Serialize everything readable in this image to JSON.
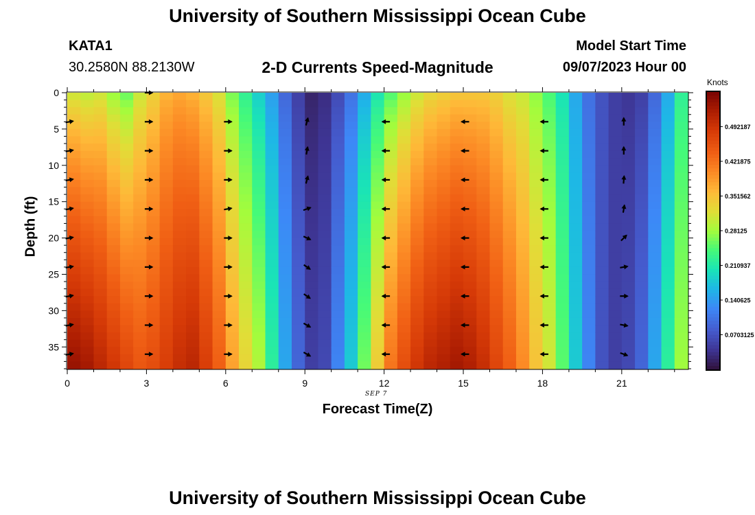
{
  "header": {
    "title": "University of Southern Mississippi Ocean Cube",
    "station": "KATA1",
    "coords": "30.2580N  88.2130W",
    "product": "2-D Currents Speed-Magnitude",
    "model_start_label": "Model Start Time",
    "model_start_value": "09/07/2023 Hour 00"
  },
  "footer": {
    "title": "University of Southern Mississippi Ocean Cube"
  },
  "chart_data": {
    "type": "heatmap",
    "title": "2-D Currents Speed-Magnitude",
    "xlabel": "Forecast Time(Z)",
    "ylabel": "Depth (ft)",
    "date_label": "SEP 7",
    "xlim": [
      0,
      23.5
    ],
    "ylim": [
      0,
      38
    ],
    "x_ticks": [
      0,
      3,
      6,
      9,
      12,
      15,
      18,
      21
    ],
    "y_ticks": [
      0,
      5,
      10,
      15,
      20,
      25,
      30,
      35
    ],
    "colorbar": {
      "label": "Knots",
      "range": [
        0,
        0.5624
      ],
      "ticks": [
        "0.492187",
        "0.421875",
        "0.351562",
        "0.28125",
        "0.210937",
        "0.140625",
        "0.0703125"
      ]
    },
    "time_hours": [
      0,
      0.5,
      1,
      1.5,
      2,
      2.5,
      3,
      3.5,
      4,
      4.5,
      5,
      5.5,
      6,
      6.5,
      7,
      7.5,
      8,
      8.5,
      9,
      9.5,
      10,
      10.5,
      11,
      11.5,
      12,
      12.5,
      13,
      13.5,
      14,
      14.5,
      15,
      15.5,
      16,
      16.5,
      17,
      17.5,
      18,
      18.5,
      19,
      19.5,
      20,
      20.5,
      21,
      21.5,
      22,
      22.5,
      23
    ],
    "surface_speed_knots": [
      0.3,
      0.29,
      0.3,
      0.27,
      0.25,
      0.3,
      0.33,
      0.36,
      0.37,
      0.36,
      0.34,
      0.31,
      0.26,
      0.22,
      0.18,
      0.14,
      0.09,
      0.05,
      0.02,
      0.03,
      0.06,
      0.1,
      0.15,
      0.2,
      0.24,
      0.27,
      0.3,
      0.32,
      0.33,
      0.34,
      0.34,
      0.34,
      0.33,
      0.31,
      0.3,
      0.27,
      0.24,
      0.2,
      0.15,
      0.1,
      0.07,
      0.05,
      0.04,
      0.05,
      0.09,
      0.15,
      0.22
    ],
    "bottom_speed_knots": [
      0.54,
      0.53,
      0.51,
      0.49,
      0.47,
      0.45,
      0.46,
      0.48,
      0.5,
      0.51,
      0.48,
      0.44,
      0.38,
      0.33,
      0.29,
      0.22,
      0.15,
      0.09,
      0.05,
      0.06,
      0.12,
      0.18,
      0.26,
      0.34,
      0.42,
      0.46,
      0.49,
      0.51,
      0.52,
      0.53,
      0.52,
      0.5,
      0.47,
      0.44,
      0.4,
      0.35,
      0.31,
      0.25,
      0.18,
      0.12,
      0.07,
      0.05,
      0.06,
      0.09,
      0.15,
      0.22,
      0.28
    ],
    "vectors": {
      "times": [
        0,
        3,
        6,
        9,
        12,
        15,
        18,
        21
      ],
      "depths": [
        0,
        4,
        8,
        12,
        16,
        20,
        24,
        28,
        32,
        36
      ],
      "direction_deg": [
        [
          null,
          80,
          80,
          80,
          80,
          80,
          80,
          80,
          80,
          80
        ],
        [
          90,
          90,
          90,
          90,
          90,
          90,
          90,
          90,
          90,
          90
        ],
        [
          null,
          90,
          90,
          90,
          80,
          90,
          90,
          90,
          90,
          90
        ],
        [
          null,
          15,
          10,
          15,
          70,
          115,
          125,
          125,
          120,
          120
        ],
        [
          null,
          270,
          270,
          270,
          270,
          270,
          270,
          270,
          270,
          270
        ],
        [
          null,
          270,
          270,
          270,
          270,
          270,
          270,
          270,
          270,
          270
        ],
        [
          null,
          270,
          270,
          270,
          270,
          270,
          270,
          270,
          270,
          270
        ],
        [
          null,
          0,
          0,
          5,
          10,
          45,
          80,
          90,
          100,
          110
        ]
      ]
    }
  }
}
